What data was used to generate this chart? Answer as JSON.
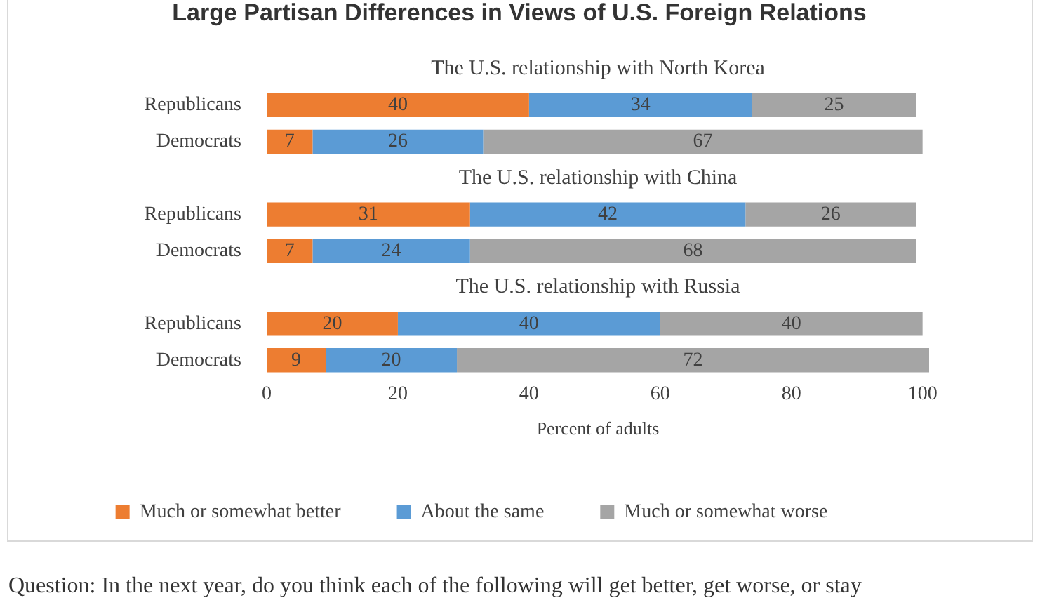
{
  "chart_data": {
    "type": "bar",
    "orientation": "horizontal",
    "stacked": true,
    "title": "Large Partisan Differences in Views of U.S. Foreign Relations",
    "xlabel": "Percent of adults",
    "categories": [
      null,
      "Republicans",
      "Democrats",
      null,
      "Republicans",
      "Democrats",
      null,
      "Republicans",
      "Democrats"
    ],
    "series": [
      {
        "name": "Much or somewhat better",
        "color": "#ed7d31",
        "values": [
          null,
          40,
          7,
          null,
          31,
          7,
          null,
          20,
          9
        ]
      },
      {
        "name": "About the same",
        "color": "#5b9bd5",
        "values": [
          null,
          34,
          26,
          null,
          42,
          24,
          null,
          40,
          20
        ]
      },
      {
        "name": "Much or somewhat worse",
        "color": "#a5a5a5",
        "values": [
          null,
          25,
          67,
          null,
          26,
          68,
          null,
          40,
          72
        ]
      }
    ],
    "xlim": [
      0,
      101
    ],
    "xticks": [
      0,
      20,
      40,
      60,
      80,
      100
    ],
    "grid": false,
    "legend": "bottom",
    "data_labels": true,
    "annotations": [
      "The U.S. relationship with North Korea",
      "The U.S. relationship with China",
      "The U.S. relationship with Russia",
      "Question: In the next year, do you think each of the following will get better, get worse, or stay"
    ]
  }
}
